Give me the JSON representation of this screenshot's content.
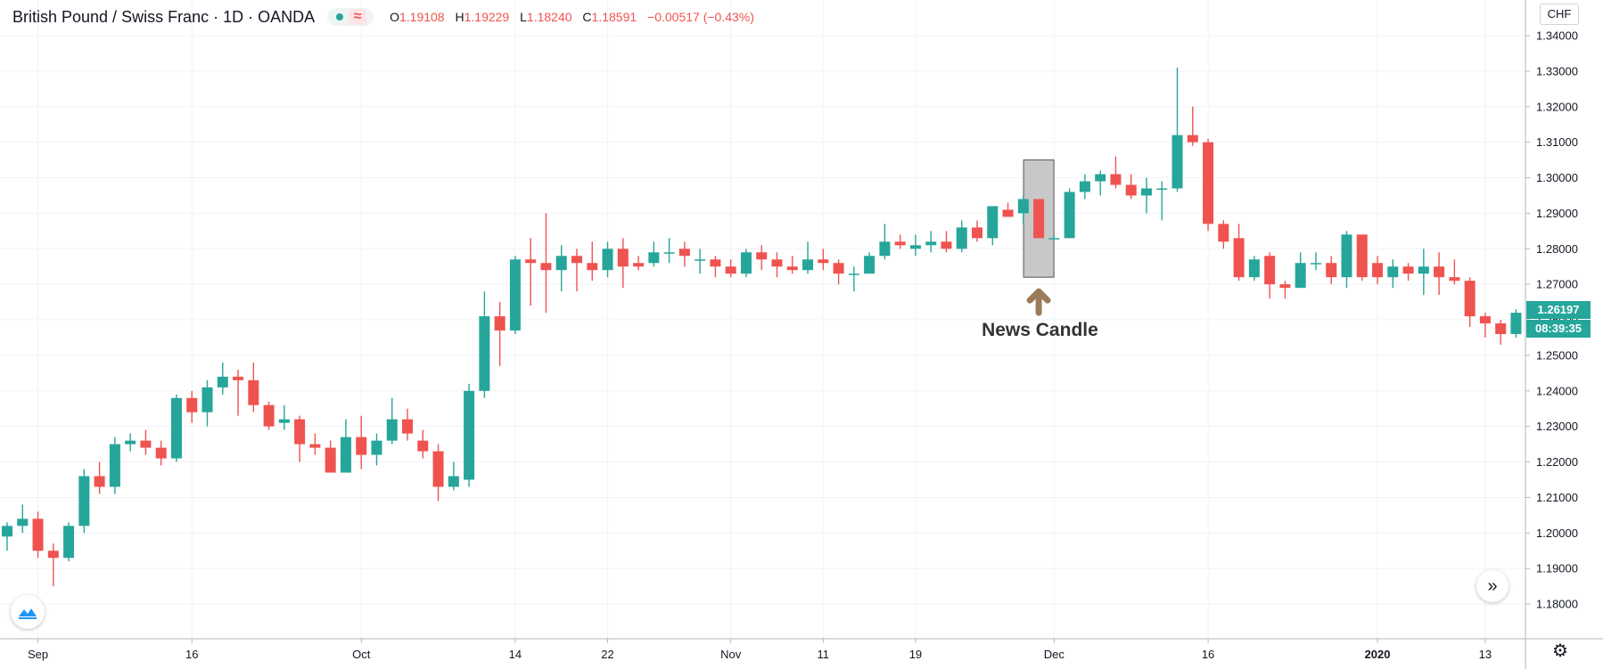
{
  "header": {
    "title": "British Pound / Swiss Franc · 1D · OANDA",
    "ohlc": {
      "o_key": "O",
      "o_val": "1.19108",
      "h_key": "H",
      "h_val": "1.19229",
      "l_key": "L",
      "l_val": "1.18240",
      "c_key": "C",
      "c_val": "1.18591",
      "change": "−0.00517 (−0.43%)"
    }
  },
  "price_axis": {
    "currency": "CHF",
    "last_price_tag": "1.26197",
    "countdown_tag": "08:39:35"
  },
  "annotation": {
    "label": "News Candle"
  },
  "icons": {
    "logo": "tradingview-logo-icon",
    "scroll": "scroll-to-realtime-icon",
    "settings": "gear-icon",
    "arrow": "up-arrow-icon"
  },
  "colors": {
    "up": "#26a69a",
    "down": "#ef5350",
    "grid": "#f0f3fa",
    "highlight_box": "#c8c8c8",
    "arrow": "#9c7b5a"
  },
  "chart_data": {
    "type": "candlestick",
    "title": "British Pound / Swiss Franc · 1D · OANDA",
    "ylabel": "CHF",
    "ylim": [
      1.173,
      1.346
    ],
    "y_ticks": [
      "1.34000",
      "1.33000",
      "1.32000",
      "1.31000",
      "1.30000",
      "1.29000",
      "1.28000",
      "1.27000",
      "1.26000",
      "1.25000",
      "1.24000",
      "1.23000",
      "1.22000",
      "1.21000",
      "1.20000",
      "1.19000",
      "1.18000"
    ],
    "x_ticks": [
      {
        "label": "Sep",
        "index": 2
      },
      {
        "label": "16",
        "index": 12
      },
      {
        "label": "Oct",
        "index": 23
      },
      {
        "label": "14",
        "index": 33
      },
      {
        "label": "22",
        "index": 39
      },
      {
        "label": "Nov",
        "index": 47
      },
      {
        "label": "11",
        "index": 53
      },
      {
        "label": "19",
        "index": 59
      },
      {
        "label": "Dec",
        "index": 68
      },
      {
        "label": "16",
        "index": 78
      },
      {
        "label": "2020",
        "index": 89
      },
      {
        "label": "13",
        "index": 96
      }
    ],
    "bold_x_ticks": [
      "2020"
    ],
    "candles": [
      [
        1.199,
        1.203,
        1.195,
        1.202
      ],
      [
        1.202,
        1.208,
        1.2,
        1.204
      ],
      [
        1.204,
        1.206,
        1.193,
        1.195
      ],
      [
        1.195,
        1.197,
        1.185,
        1.193
      ],
      [
        1.193,
        1.203,
        1.192,
        1.202
      ],
      [
        1.202,
        1.218,
        1.2,
        1.216
      ],
      [
        1.216,
        1.22,
        1.211,
        1.213
      ],
      [
        1.213,
        1.227,
        1.211,
        1.225
      ],
      [
        1.225,
        1.228,
        1.223,
        1.226
      ],
      [
        1.226,
        1.229,
        1.222,
        1.224
      ],
      [
        1.224,
        1.226,
        1.219,
        1.221
      ],
      [
        1.221,
        1.239,
        1.22,
        1.238
      ],
      [
        1.238,
        1.24,
        1.231,
        1.234
      ],
      [
        1.234,
        1.243,
        1.23,
        1.241
      ],
      [
        1.241,
        1.248,
        1.239,
        1.244
      ],
      [
        1.244,
        1.246,
        1.233,
        1.243
      ],
      [
        1.243,
        1.248,
        1.234,
        1.236
      ],
      [
        1.236,
        1.237,
        1.229,
        1.23
      ],
      [
        1.231,
        1.236,
        1.229,
        1.232
      ],
      [
        1.232,
        1.233,
        1.22,
        1.225
      ],
      [
        1.225,
        1.228,
        1.222,
        1.224
      ],
      [
        1.224,
        1.226,
        1.217,
        1.217
      ],
      [
        1.217,
        1.232,
        1.217,
        1.227
      ],
      [
        1.227,
        1.233,
        1.218,
        1.222
      ],
      [
        1.222,
        1.228,
        1.219,
        1.226
      ],
      [
        1.226,
        1.238,
        1.225,
        1.232
      ],
      [
        1.232,
        1.235,
        1.226,
        1.228
      ],
      [
        1.226,
        1.229,
        1.221,
        1.223
      ],
      [
        1.223,
        1.225,
        1.209,
        1.213
      ],
      [
        1.213,
        1.22,
        1.212,
        1.216
      ],
      [
        1.215,
        1.242,
        1.213,
        1.24
      ],
      [
        1.24,
        1.268,
        1.238,
        1.261
      ],
      [
        1.261,
        1.265,
        1.247,
        1.257
      ],
      [
        1.257,
        1.278,
        1.256,
        1.277
      ],
      [
        1.277,
        1.283,
        1.264,
        1.276
      ],
      [
        1.276,
        1.29,
        1.262,
        1.274
      ],
      [
        1.274,
        1.281,
        1.268,
        1.278
      ],
      [
        1.278,
        1.28,
        1.268,
        1.276
      ],
      [
        1.276,
        1.282,
        1.271,
        1.274
      ],
      [
        1.274,
        1.282,
        1.272,
        1.28
      ],
      [
        1.28,
        1.283,
        1.269,
        1.275
      ],
      [
        1.276,
        1.278,
        1.274,
        1.275
      ],
      [
        1.276,
        1.282,
        1.275,
        1.279
      ],
      [
        1.279,
        1.283,
        1.276,
        1.279
      ],
      [
        1.28,
        1.282,
        1.275,
        1.278
      ],
      [
        1.277,
        1.28,
        1.273,
        1.277
      ],
      [
        1.277,
        1.278,
        1.272,
        1.275
      ],
      [
        1.275,
        1.277,
        1.272,
        1.273
      ],
      [
        1.273,
        1.28,
        1.272,
        1.279
      ],
      [
        1.279,
        1.281,
        1.274,
        1.277
      ],
      [
        1.277,
        1.279,
        1.272,
        1.275
      ],
      [
        1.275,
        1.278,
        1.273,
        1.274
      ],
      [
        1.274,
        1.282,
        1.273,
        1.277
      ],
      [
        1.277,
        1.28,
        1.274,
        1.276
      ],
      [
        1.276,
        1.277,
        1.27,
        1.273
      ],
      [
        1.273,
        1.275,
        1.268,
        1.273
      ],
      [
        1.273,
        1.279,
        1.273,
        1.278
      ],
      [
        1.278,
        1.287,
        1.277,
        1.282
      ],
      [
        1.282,
        1.284,
        1.28,
        1.281
      ],
      [
        1.28,
        1.284,
        1.278,
        1.281
      ],
      [
        1.281,
        1.285,
        1.279,
        1.282
      ],
      [
        1.282,
        1.285,
        1.279,
        1.28
      ],
      [
        1.28,
        1.288,
        1.279,
        1.286
      ],
      [
        1.286,
        1.288,
        1.282,
        1.283
      ],
      [
        1.283,
        1.292,
        1.281,
        1.292
      ],
      [
        1.291,
        1.293,
        1.289,
        1.289
      ],
      [
        1.29,
        1.295,
        1.287,
        1.294
      ],
      [
        1.294,
        1.294,
        1.283,
        1.283
      ],
      [
        1.283,
        1.284,
        1.283,
        1.283
      ],
      [
        1.283,
        1.297,
        1.283,
        1.296
      ],
      [
        1.296,
        1.301,
        1.294,
        1.299
      ],
      [
        1.299,
        1.302,
        1.295,
        1.301
      ],
      [
        1.301,
        1.306,
        1.297,
        1.298
      ],
      [
        1.298,
        1.301,
        1.294,
        1.295
      ],
      [
        1.295,
        1.3,
        1.29,
        1.297
      ],
      [
        1.297,
        1.299,
        1.288,
        1.297
      ],
      [
        1.297,
        1.331,
        1.296,
        1.312
      ],
      [
        1.312,
        1.32,
        1.309,
        1.31
      ],
      [
        1.31,
        1.311,
        1.285,
        1.287
      ],
      [
        1.287,
        1.288,
        1.28,
        1.282
      ],
      [
        1.283,
        1.287,
        1.271,
        1.272
      ],
      [
        1.272,
        1.278,
        1.271,
        1.277
      ],
      [
        1.278,
        1.279,
        1.266,
        1.27
      ],
      [
        1.27,
        1.271,
        1.266,
        1.269
      ],
      [
        1.269,
        1.279,
        1.269,
        1.276
      ],
      [
        1.276,
        1.279,
        1.274,
        1.276
      ],
      [
        1.276,
        1.278,
        1.27,
        1.272
      ],
      [
        1.272,
        1.285,
        1.269,
        1.284
      ],
      [
        1.284,
        1.284,
        1.271,
        1.272
      ],
      [
        1.276,
        1.278,
        1.27,
        1.272
      ],
      [
        1.272,
        1.277,
        1.269,
        1.275
      ],
      [
        1.275,
        1.276,
        1.271,
        1.273
      ],
      [
        1.273,
        1.28,
        1.267,
        1.275
      ],
      [
        1.275,
        1.279,
        1.267,
        1.272
      ],
      [
        1.272,
        1.277,
        1.27,
        1.271
      ],
      [
        1.271,
        1.272,
        1.258,
        1.261
      ],
      [
        1.261,
        1.262,
        1.255,
        1.259
      ],
      [
        1.259,
        1.26,
        1.253,
        1.256
      ],
      [
        1.256,
        1.263,
        1.255,
        1.262
      ]
    ],
    "highlight_index": 67,
    "grid": true,
    "legend": "none"
  }
}
